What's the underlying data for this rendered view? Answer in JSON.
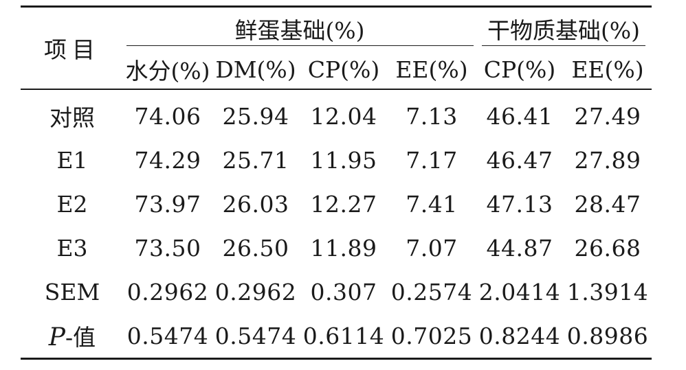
{
  "table": {
    "header": {
      "item": "项目",
      "group_fresh": "鲜蛋基础(%)",
      "group_dry": "干物质基础(%)",
      "sub_columns": [
        "水分(%)",
        "DM(%)",
        "CP(%)",
        "EE(%)",
        "CP(%)",
        "EE(%)"
      ]
    },
    "rows": [
      {
        "label": "对照",
        "values": [
          "74.06",
          "25.94",
          "12.04",
          "7.13",
          "46.41",
          "27.49"
        ]
      },
      {
        "label": "E1",
        "values": [
          "74.29",
          "25.71",
          "11.95",
          "7.17",
          "46.47",
          "27.89"
        ]
      },
      {
        "label": "E2",
        "values": [
          "73.97",
          "26.03",
          "12.27",
          "7.41",
          "47.13",
          "28.47"
        ]
      },
      {
        "label": "E3",
        "values": [
          "73.50",
          "26.50",
          "11.89",
          "7.07",
          "44.87",
          "26.68"
        ]
      },
      {
        "label": "SEM",
        "values": [
          "0.2962",
          "0.2962",
          "0.307",
          "0.2574",
          "2.0414",
          "1.3914"
        ]
      },
      {
        "label_italic": "P",
        "label": "-值",
        "values": [
          "0.5474",
          "0.5474",
          "0.6114",
          "0.7025",
          "0.8244",
          "0.8986"
        ]
      }
    ]
  }
}
